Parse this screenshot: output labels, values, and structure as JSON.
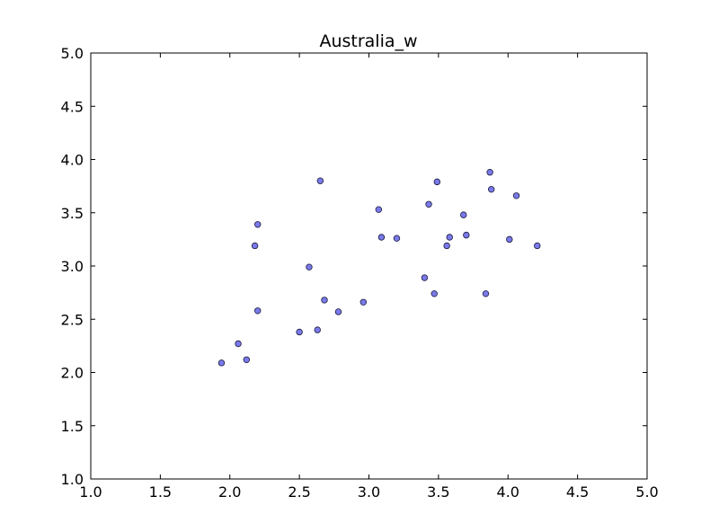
{
  "chart_data": {
    "type": "scatter",
    "title": "Australia_w",
    "xlabel": "",
    "ylabel": "",
    "xlim": [
      1.0,
      5.0
    ],
    "ylim": [
      1.0,
      5.0
    ],
    "xticks": [
      "1.0",
      "1.5",
      "2.0",
      "2.5",
      "3.0",
      "3.5",
      "4.0",
      "4.5",
      "5.0"
    ],
    "yticks": [
      "1.0",
      "1.5",
      "2.0",
      "2.5",
      "3.0",
      "3.5",
      "4.0",
      "4.5",
      "5.0"
    ],
    "grid": false,
    "marker_color": "#6b6be8",
    "marker_edge_color": "#1a1a40",
    "series": [
      {
        "x": [
          1.94,
          2.06,
          2.12,
          2.18,
          2.2,
          2.2,
          2.5,
          2.57,
          2.63,
          2.65,
          2.68,
          2.78,
          2.96,
          3.07,
          3.09,
          3.2,
          3.4,
          3.43,
          3.47,
          3.49,
          3.56,
          3.58,
          3.68,
          3.7,
          3.84,
          3.87,
          3.88,
          4.01,
          4.06,
          4.21
        ],
        "y": [
          2.09,
          2.27,
          2.12,
          3.19,
          3.39,
          2.58,
          2.38,
          2.99,
          2.4,
          3.8,
          2.68,
          2.57,
          2.66,
          3.53,
          3.27,
          3.26,
          2.89,
          3.58,
          2.74,
          3.79,
          3.19,
          3.27,
          3.48,
          3.29,
          2.74,
          3.88,
          3.72,
          3.25,
          3.66,
          3.19
        ]
      }
    ]
  }
}
